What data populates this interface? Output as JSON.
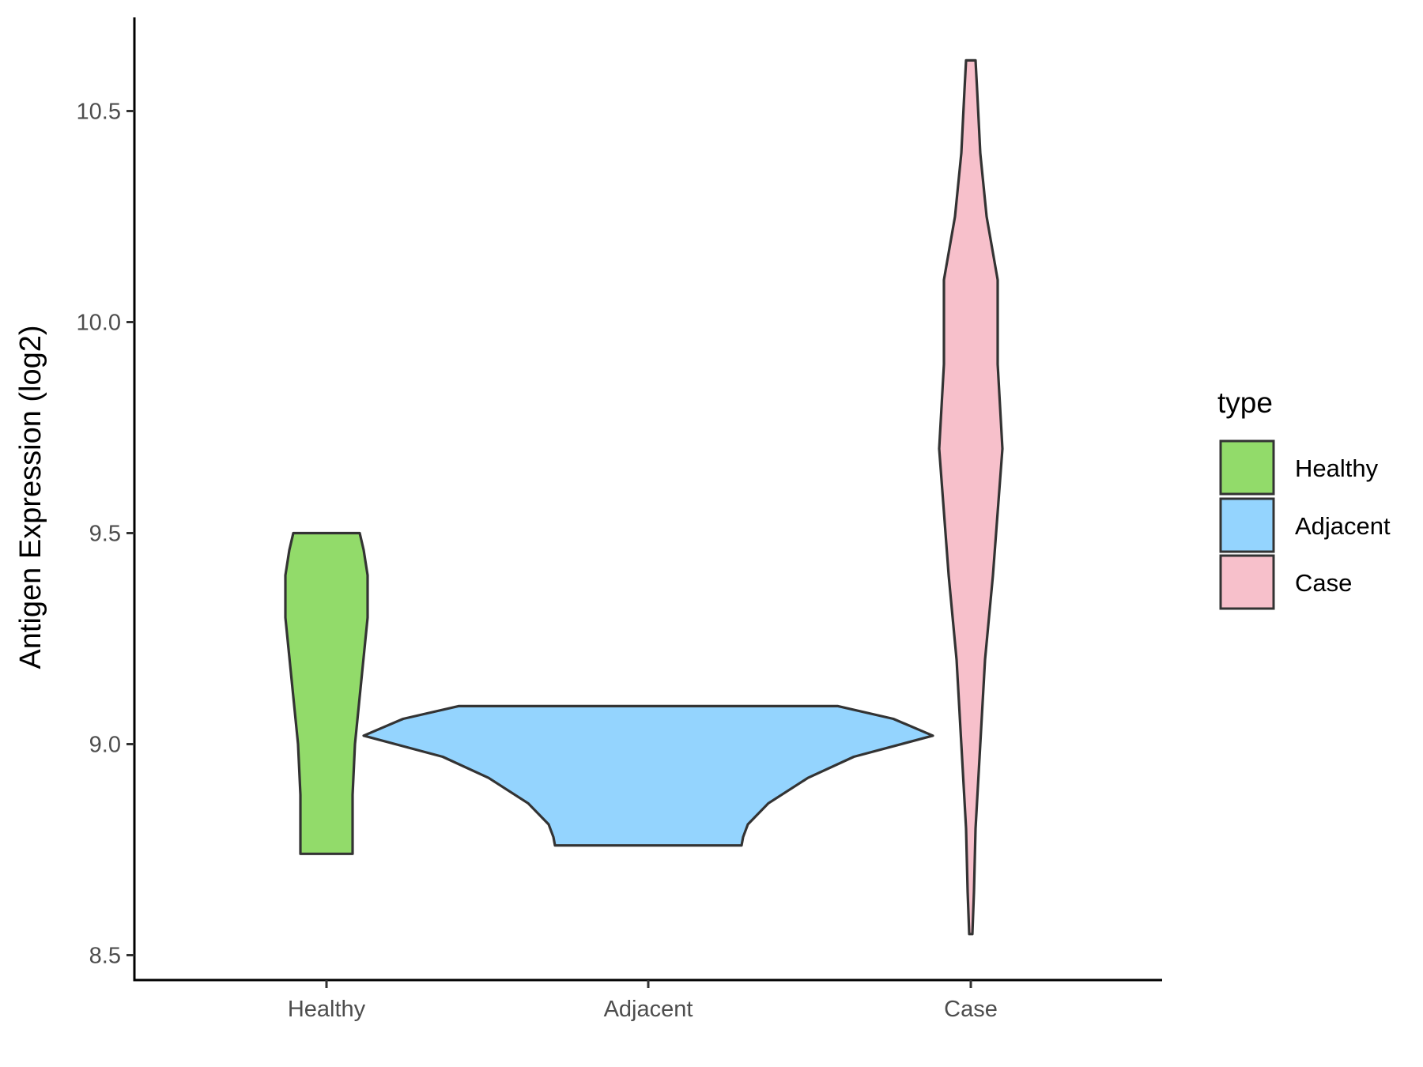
{
  "chart_data": {
    "type": "violin",
    "title": "",
    "xlabel": "",
    "ylabel": "Antigen Expression (log2)",
    "ylim": [
      8.45,
      10.72
    ],
    "y_ticks": [
      8.5,
      9.0,
      9.5,
      10.0,
      10.5
    ],
    "y_tick_labels": [
      "8.5",
      "9.0",
      "9.5",
      "10.0",
      "10.5"
    ],
    "grid": false,
    "categories": [
      "Healthy",
      "Adjacent",
      "Case"
    ],
    "legend": {
      "title": "type",
      "placement": "right",
      "entries": [
        "Healthy",
        "Adjacent",
        "Case"
      ]
    },
    "series": [
      {
        "name": "Healthy",
        "color": "#92db6a",
        "min": 8.74,
        "max": 9.5,
        "density_profile": [
          [
            8.74,
            0.165
          ],
          [
            8.88,
            0.165
          ],
          [
            9.0,
            0.18
          ],
          [
            9.15,
            0.22
          ],
          [
            9.3,
            0.26
          ],
          [
            9.4,
            0.26
          ],
          [
            9.46,
            0.235
          ],
          [
            9.5,
            0.21
          ]
        ]
      },
      {
        "name": "Adjacent",
        "color": "#94d4fe",
        "min": 8.76,
        "max": 9.09,
        "density_profile": [
          [
            8.76,
            0.59
          ],
          [
            8.78,
            0.6
          ],
          [
            8.81,
            0.63
          ],
          [
            8.86,
            0.76
          ],
          [
            8.92,
            1.01
          ],
          [
            8.97,
            1.3
          ],
          [
            9.02,
            1.8
          ],
          [
            9.06,
            1.55
          ],
          [
            9.09,
            1.2
          ]
        ]
      },
      {
        "name": "Case",
        "color": "#f7c0cb",
        "min": 8.55,
        "max": 10.62,
        "density_profile": [
          [
            8.55,
            0.01
          ],
          [
            8.65,
            0.02
          ],
          [
            8.8,
            0.03
          ],
          [
            9.0,
            0.06
          ],
          [
            9.2,
            0.09
          ],
          [
            9.4,
            0.14
          ],
          [
            9.55,
            0.17
          ],
          [
            9.7,
            0.2
          ],
          [
            9.9,
            0.17
          ],
          [
            10.1,
            0.17
          ],
          [
            10.25,
            0.1
          ],
          [
            10.4,
            0.06
          ],
          [
            10.55,
            0.04
          ],
          [
            10.62,
            0.03
          ]
        ]
      }
    ]
  }
}
